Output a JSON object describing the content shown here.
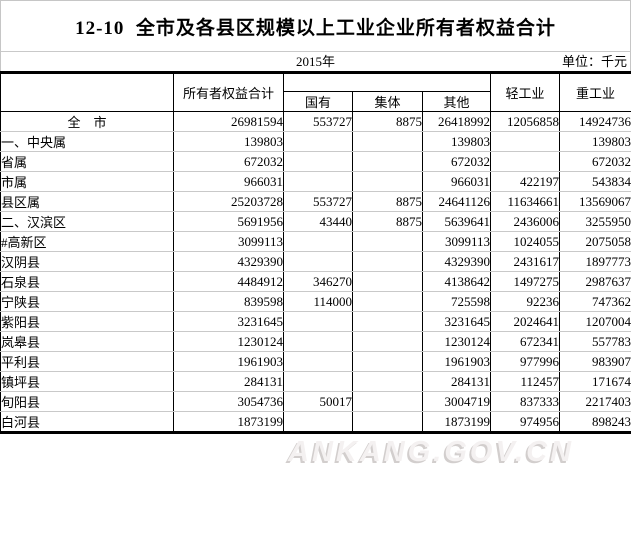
{
  "title": "12-10  全市及各县区规模以上工业企业所有者权益合计",
  "subheader": {
    "year": "2015年",
    "unit": "单位：千元"
  },
  "table": {
    "headers": {
      "stub": "",
      "total": "所有者权益合计",
      "group_blank": "",
      "state": "国有",
      "collective": "集体",
      "other": "其他",
      "light": "轻工业",
      "heavy": "重工业"
    },
    "rows": [
      {
        "label": "全　市",
        "indent": "c",
        "total": "26981594",
        "state": "553727",
        "collective": "8875",
        "other": "26418992",
        "light": "12056858",
        "heavy": "14924736"
      },
      {
        "label": "一、中央属",
        "indent": "0",
        "total": "139803",
        "state": "",
        "collective": "",
        "other": "139803",
        "light": "",
        "heavy": "139803"
      },
      {
        "label": "省属",
        "indent": "1",
        "total": "672032",
        "state": "",
        "collective": "",
        "other": "672032",
        "light": "",
        "heavy": "672032"
      },
      {
        "label": "市属",
        "indent": "1",
        "total": "966031",
        "state": "",
        "collective": "",
        "other": "966031",
        "light": "422197",
        "heavy": "543834"
      },
      {
        "label": "县区属",
        "indent": "1",
        "total": "25203728",
        "state": "553727",
        "collective": "8875",
        "other": "24641126",
        "light": "11634661",
        "heavy": "13569067"
      },
      {
        "label": "二、汉滨区",
        "indent": "0",
        "total": "5691956",
        "state": "43440",
        "collective": "8875",
        "other": "5639641",
        "light": "2436006",
        "heavy": "3255950"
      },
      {
        "label": "#高新区",
        "indent": "2",
        "total": "3099113",
        "state": "",
        "collective": "",
        "other": "3099113",
        "light": "1024055",
        "heavy": "2075058"
      },
      {
        "label": "汉阴县",
        "indent": "1",
        "total": "4329390",
        "state": "",
        "collective": "",
        "other": "4329390",
        "light": "2431617",
        "heavy": "1897773"
      },
      {
        "label": "石泉县",
        "indent": "1",
        "total": "4484912",
        "state": "346270",
        "collective": "",
        "other": "4138642",
        "light": "1497275",
        "heavy": "2987637"
      },
      {
        "label": "宁陕县",
        "indent": "1",
        "total": "839598",
        "state": "114000",
        "collective": "",
        "other": "725598",
        "light": "92236",
        "heavy": "747362"
      },
      {
        "label": "紫阳县",
        "indent": "1",
        "total": "3231645",
        "state": "",
        "collective": "",
        "other": "3231645",
        "light": "2024641",
        "heavy": "1207004"
      },
      {
        "label": "岚皋县",
        "indent": "1",
        "total": "1230124",
        "state": "",
        "collective": "",
        "other": "1230124",
        "light": "672341",
        "heavy": "557783"
      },
      {
        "label": "平利县",
        "indent": "1",
        "total": "1961903",
        "state": "",
        "collective": "",
        "other": "1961903",
        "light": "977996",
        "heavy": "983907"
      },
      {
        "label": "镇坪县",
        "indent": "1",
        "total": "284131",
        "state": "",
        "collective": "",
        "other": "284131",
        "light": "112457",
        "heavy": "171674"
      },
      {
        "label": "旬阳县",
        "indent": "1",
        "total": "3054736",
        "state": "50017",
        "collective": "",
        "other": "3004719",
        "light": "837333",
        "heavy": "2217403"
      },
      {
        "label": "白河县",
        "indent": "1",
        "total": "1873199",
        "state": "",
        "collective": "",
        "other": "1873199",
        "light": "974956",
        "heavy": "898243"
      }
    ]
  },
  "watermark": "ANKANG.GOV.CN",
  "colors": {
    "grid_dark": "#000000",
    "row_line": "#c9c9c9",
    "title_rule": "#c6c6c6",
    "watermark_fill": "#f4f1f1",
    "watermark_shadow": "#d2cecd"
  }
}
